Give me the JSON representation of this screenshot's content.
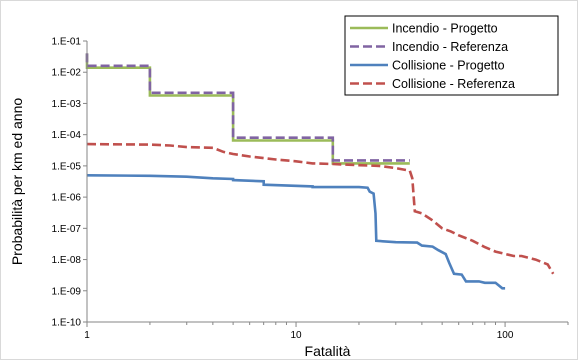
{
  "chart_data": {
    "type": "line",
    "xlabel": "Fatalità",
    "ylabel": "Probabilità per km ed anno",
    "x_scale": "log",
    "y_scale": "log",
    "xlim": [
      1,
      200
    ],
    "ylim": [
      1e-10,
      0.1
    ],
    "x_ticks": [
      1,
      10,
      100
    ],
    "x_tick_labels": [
      "1",
      "10",
      "100"
    ],
    "y_ticks": [
      1e-10,
      1e-09,
      1e-08,
      1e-07,
      1e-06,
      1e-05,
      0.0001,
      0.001,
      0.01,
      0.1
    ],
    "y_tick_labels": [
      "1.E-10",
      "1.E-09",
      "1.E-08",
      "1.E-07",
      "1.E-06",
      "1.E-05",
      "1.E-04",
      "1.E-03",
      "1.E-02",
      "1.E-01"
    ],
    "grid": false,
    "legend_position": "top-right",
    "series": [
      {
        "name": "Incendio - Progetto",
        "color": "#9BBB59",
        "style": "solid",
        "x": [
          1,
          1,
          2,
          2,
          5,
          5,
          15,
          15,
          35
        ],
        "y": [
          0.04,
          0.014,
          0.014,
          0.0018,
          0.0018,
          6.5e-05,
          6.5e-05,
          1.2e-05,
          1.2e-05
        ]
      },
      {
        "name": "Incendio - Referenza",
        "color": "#8064A2",
        "style": "dashed",
        "x": [
          1,
          1,
          2,
          2,
          5,
          5,
          15,
          15,
          35
        ],
        "y": [
          0.04,
          0.016,
          0.016,
          0.0022,
          0.0022,
          8e-05,
          8e-05,
          1.5e-05,
          1.5e-05
        ]
      },
      {
        "name": "Collisione - Progotto",
        "name_display": "Collisione - Progetto",
        "color": "#4F81BD",
        "style": "solid",
        "x": [
          1,
          2,
          3,
          4,
          5,
          5,
          7,
          7,
          12,
          12,
          20,
          22,
          22.5,
          23.5,
          24,
          24.2,
          30,
          38,
          40,
          45,
          48,
          52,
          54,
          55,
          57,
          62,
          65,
          75,
          80,
          90,
          97,
          100
        ],
        "y": [
          5e-06,
          4.8e-06,
          4.5e-06,
          4e-06,
          3.8e-06,
          3.5e-06,
          3.2e-06,
          2.5e-06,
          2.2e-06,
          2.1e-06,
          2.1e-06,
          2e-06,
          1.5e-06,
          1.3e-06,
          3e-07,
          4e-08,
          3.6e-08,
          3.5e-08,
          2.8e-08,
          2.6e-08,
          2e-08,
          1.5e-08,
          8e-09,
          6e-09,
          3.5e-09,
          3.3e-09,
          2e-09,
          2e-09,
          1.8e-09,
          1.8e-09,
          1.2e-09,
          1.2e-09
        ]
      },
      {
        "name": "Collisione - Referenza",
        "color": "#C0504D",
        "style": "dashed",
        "x": [
          1,
          2,
          2.5,
          3,
          4,
          4.5,
          5,
          6,
          8,
          10,
          12,
          15,
          20,
          25,
          30,
          35,
          36,
          37,
          40,
          45,
          50,
          55,
          60,
          70,
          80,
          90,
          110,
          120,
          140,
          160,
          170
        ],
        "y": [
          5e-05,
          4.8e-05,
          4.5e-05,
          4e-05,
          3.8e-05,
          2.8e-05,
          2.4e-05,
          2e-05,
          1.6e-05,
          1.4e-05,
          1.2e-05,
          1.15e-05,
          1.05e-05,
          1e-05,
          8.5e-06,
          7e-06,
          4e-06,
          3.5e-07,
          3e-07,
          1.8e-07,
          1e-07,
          8e-08,
          6e-08,
          4e-08,
          2.5e-08,
          1.8e-08,
          1.3e-08,
          1.3e-08,
          1e-08,
          7e-09,
          3.5e-09
        ]
      }
    ]
  }
}
